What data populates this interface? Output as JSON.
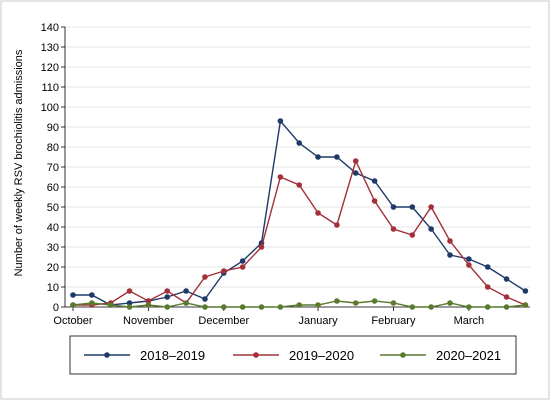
{
  "chart_data": {
    "type": "line",
    "title": "",
    "xlabel": "",
    "ylabel": "Number of weekly RSV brochiolitis admissions",
    "ylim": [
      0,
      140
    ],
    "yticks": [
      0,
      10,
      20,
      30,
      40,
      50,
      60,
      70,
      80,
      90,
      100,
      110,
      120,
      130,
      140
    ],
    "x_tick_labels": [
      "October",
      "November",
      "December",
      "January",
      "February",
      "March"
    ],
    "x_tick_weeks": [
      0,
      4,
      8,
      13,
      17,
      21
    ],
    "grid": true,
    "legend_position": "bottom",
    "x_weeks": [
      0,
      1,
      2,
      3,
      4,
      5,
      6,
      7,
      8,
      9,
      10,
      11,
      12,
      13,
      14,
      15,
      16,
      17,
      18,
      19,
      20,
      21,
      22,
      23,
      24
    ],
    "series": [
      {
        "name": "2018–2019",
        "color": "#1f3a68",
        "values": [
          6,
          6,
          1,
          2,
          3,
          5,
          8,
          4,
          17,
          23,
          32,
          93,
          82,
          75,
          75,
          67,
          63,
          50,
          50,
          39,
          26,
          24,
          20,
          14,
          8
        ]
      },
      {
        "name": "2019–2020",
        "color": "#a3303a",
        "values": [
          1,
          1,
          2,
          8,
          3,
          8,
          2,
          15,
          18,
          20,
          30,
          65,
          61,
          47,
          41,
          73,
          53,
          39,
          36,
          50,
          33,
          21,
          10,
          5,
          1
        ]
      },
      {
        "name": "2020–2021",
        "color": "#5a7a2e",
        "values": [
          1,
          2,
          1,
          0,
          1,
          0,
          2,
          0,
          0,
          0,
          0,
          0,
          1,
          1,
          3,
          2,
          3,
          2,
          0,
          0,
          2,
          0,
          0,
          0,
          1
        ]
      }
    ]
  }
}
